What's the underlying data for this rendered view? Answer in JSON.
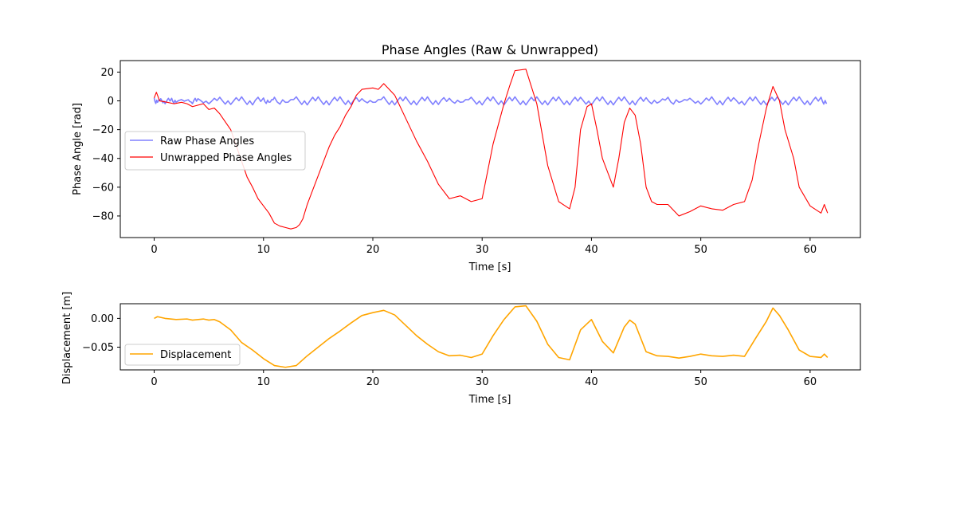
{
  "chart_data": [
    {
      "type": "line",
      "title": "Phase Angles (Raw & Unwrapped)",
      "xlabel": "Time [s]",
      "ylabel": "Phase Angle [rad]",
      "xlim": [
        -3.1,
        64.6
      ],
      "ylim": [
        -95,
        28
      ],
      "x_ticks": [
        0,
        10,
        20,
        30,
        40,
        50,
        60
      ],
      "x_tick_labels": [
        "0",
        "10",
        "20",
        "30",
        "40",
        "50",
        "60"
      ],
      "y_ticks": [
        20,
        0,
        -20,
        -40,
        -60,
        -80
      ],
      "y_tick_labels": [
        "20",
        "0",
        "−20",
        "−40",
        "−60",
        "−80"
      ],
      "grid": false,
      "legend_position": "center-left",
      "series": [
        {
          "name": "Raw Phase Angles",
          "color": "#8080ff",
          "x_range": [
            0,
            61.5
          ],
          "y_range": [
            -3.14,
            3.14
          ],
          "points": [
            [
              0,
              2
            ],
            [
              0.3,
              -1
            ],
            [
              0.6,
              1.5
            ],
            [
              1,
              -2
            ],
            [
              1.6,
              1.8
            ],
            [
              2,
              -1
            ],
            [
              3,
              0.5
            ],
            [
              3.5,
              -2
            ],
            [
              4,
              1.5
            ],
            [
              5,
              -2
            ],
            [
              6,
              2.5
            ],
            [
              7,
              -2.5
            ],
            [
              8,
              2.8
            ],
            [
              9,
              -2.8
            ],
            [
              10,
              2
            ],
            [
              10.5,
              -1
            ],
            [
              11,
              2.5
            ],
            [
              12,
              -1
            ],
            [
              13,
              2.8
            ],
            [
              14,
              -2.8
            ],
            [
              15,
              2.8
            ],
            [
              16,
              -2.8
            ],
            [
              17,
              2.8
            ],
            [
              18,
              -2.5
            ],
            [
              19,
              1.5
            ],
            [
              20,
              -1
            ],
            [
              21,
              2.8
            ],
            [
              22,
              -2.8
            ],
            [
              23,
              2.8
            ],
            [
              24,
              -2.8
            ],
            [
              25,
              2.8
            ],
            [
              26,
              -2.5
            ],
            [
              27,
              1.8
            ],
            [
              28,
              -1
            ],
            [
              29,
              2.5
            ],
            [
              30,
              -2.8
            ],
            [
              31,
              2.8
            ],
            [
              32,
              -2.8
            ],
            [
              33,
              2.8
            ],
            [
              34,
              -2.8
            ],
            [
              35,
              2.8
            ],
            [
              36,
              -2.8
            ],
            [
              37,
              2.8
            ],
            [
              38,
              -2.8
            ],
            [
              39,
              2.5
            ],
            [
              40,
              -2.8
            ],
            [
              41,
              2.8
            ],
            [
              42,
              -2.8
            ],
            [
              43,
              2.8
            ],
            [
              44,
              -2.8
            ],
            [
              45,
              2.2
            ],
            [
              46,
              -1.5
            ],
            [
              47,
              2.5
            ],
            [
              48,
              -1
            ],
            [
              49,
              1.8
            ],
            [
              50,
              -2.2
            ],
            [
              51,
              2.8
            ],
            [
              52,
              -2.8
            ],
            [
              53,
              2.2
            ],
            [
              54,
              -2.8
            ],
            [
              55,
              2.8
            ],
            [
              56,
              -2.8
            ],
            [
              57,
              2.8
            ],
            [
              58,
              -2.8
            ],
            [
              59,
              2.8
            ],
            [
              60,
              -2.8
            ],
            [
              61,
              2.5
            ],
            [
              61.5,
              -2
            ]
          ]
        },
        {
          "name": "Unwrapped Phase Angles",
          "color": "#ff0000",
          "points": [
            [
              0,
              2
            ],
            [
              0.2,
              6
            ],
            [
              0.5,
              0
            ],
            [
              1.2,
              -1
            ],
            [
              1.8,
              -2
            ],
            [
              2.5,
              -1
            ],
            [
              3,
              -2
            ],
            [
              3.5,
              -4
            ],
            [
              4.5,
              -2
            ],
            [
              5,
              -6
            ],
            [
              5.5,
              -5
            ],
            [
              6,
              -9
            ],
            [
              7,
              -20
            ],
            [
              8,
              -42
            ],
            [
              8.5,
              -53
            ],
            [
              9,
              -60
            ],
            [
              9.5,
              -68
            ],
            [
              10,
              -73
            ],
            [
              10.5,
              -78
            ],
            [
              11,
              -85
            ],
            [
              11.5,
              -87
            ],
            [
              12,
              -88
            ],
            [
              12.5,
              -89
            ],
            [
              13,
              -88
            ],
            [
              13.3,
              -86
            ],
            [
              13.6,
              -82
            ],
            [
              14,
              -72
            ],
            [
              14.5,
              -62
            ],
            [
              15,
              -52
            ],
            [
              15.5,
              -42
            ],
            [
              16,
              -32
            ],
            [
              16.5,
              -24
            ],
            [
              17,
              -18
            ],
            [
              17.5,
              -10
            ],
            [
              18,
              -4
            ],
            [
              18.5,
              4
            ],
            [
              19,
              8
            ],
            [
              20,
              9
            ],
            [
              20.5,
              8
            ],
            [
              21,
              12
            ],
            [
              22,
              4
            ],
            [
              23,
              -12
            ],
            [
              24,
              -28
            ],
            [
              25,
              -42
            ],
            [
              26,
              -58
            ],
            [
              27,
              -68
            ],
            [
              28,
              -66
            ],
            [
              29,
              -70
            ],
            [
              30,
              -68
            ],
            [
              31,
              -30
            ],
            [
              32,
              -2
            ],
            [
              32.5,
              10
            ],
            [
              33,
              21
            ],
            [
              34,
              22
            ],
            [
              35,
              -2
            ],
            [
              36,
              -45
            ],
            [
              37,
              -70
            ],
            [
              38,
              -75
            ],
            [
              38.5,
              -60
            ],
            [
              39,
              -20
            ],
            [
              39.6,
              -4
            ],
            [
              40,
              -2
            ],
            [
              40.5,
              -20
            ],
            [
              41,
              -40
            ],
            [
              42,
              -60
            ],
            [
              42.5,
              -40
            ],
            [
              43,
              -15
            ],
            [
              43.5,
              -5
            ],
            [
              44,
              -10
            ],
            [
              44.5,
              -30
            ],
            [
              45,
              -60
            ],
            [
              45.5,
              -70
            ],
            [
              46,
              -72
            ],
            [
              47,
              -72
            ],
            [
              48,
              -80
            ],
            [
              49,
              -77
            ],
            [
              50,
              -73
            ],
            [
              51,
              -75
            ],
            [
              52,
              -76
            ],
            [
              53,
              -72
            ],
            [
              54,
              -70
            ],
            [
              54.7,
              -55
            ],
            [
              55.3,
              -30
            ],
            [
              56,
              -5
            ],
            [
              56.6,
              10
            ],
            [
              57.2,
              0
            ],
            [
              57.7,
              -20
            ],
            [
              58.5,
              -40
            ],
            [
              59,
              -60
            ],
            [
              60,
              -73
            ],
            [
              61,
              -78
            ],
            [
              61.3,
              -72
            ],
            [
              61.6,
              -78
            ]
          ]
        }
      ]
    },
    {
      "type": "line",
      "title": "",
      "xlabel": "Time [s]",
      "ylabel": "Displacement [m]",
      "xlim": [
        -3.1,
        64.6
      ],
      "ylim": [
        -0.0895,
        0.0255
      ],
      "x_ticks": [
        0,
        10,
        20,
        30,
        40,
        50,
        60
      ],
      "x_tick_labels": [
        "0",
        "10",
        "20",
        "30",
        "40",
        "50",
        "60"
      ],
      "y_ticks": [
        0.0,
        -0.05
      ],
      "y_tick_labels": [
        "0.00",
        "−0.05"
      ],
      "grid": false,
      "legend_position": "lower-left",
      "series": [
        {
          "name": "Displacement",
          "color": "#ffa500",
          "points": [
            [
              0,
              0.0
            ],
            [
              0.3,
              0.003
            ],
            [
              1,
              0.0
            ],
            [
              2,
              -0.002
            ],
            [
              3,
              -0.001
            ],
            [
              3.5,
              -0.003
            ],
            [
              4.5,
              -0.001
            ],
            [
              5,
              -0.003
            ],
            [
              5.5,
              -0.002
            ],
            [
              6,
              -0.006
            ],
            [
              7,
              -0.02
            ],
            [
              8,
              -0.042
            ],
            [
              9,
              -0.055
            ],
            [
              10,
              -0.07
            ],
            [
              11,
              -0.082
            ],
            [
              12,
              -0.085
            ],
            [
              13,
              -0.082
            ],
            [
              14,
              -0.065
            ],
            [
              15,
              -0.05
            ],
            [
              16,
              -0.035
            ],
            [
              17,
              -0.022
            ],
            [
              18,
              -0.008
            ],
            [
              19,
              0.005
            ],
            [
              20,
              0.01
            ],
            [
              21,
              0.014
            ],
            [
              22,
              0.006
            ],
            [
              23,
              -0.012
            ],
            [
              24,
              -0.03
            ],
            [
              25,
              -0.045
            ],
            [
              26,
              -0.058
            ],
            [
              27,
              -0.065
            ],
            [
              28,
              -0.064
            ],
            [
              29,
              -0.068
            ],
            [
              30,
              -0.062
            ],
            [
              31,
              -0.03
            ],
            [
              32,
              -0.002
            ],
            [
              33,
              0.02
            ],
            [
              34,
              0.022
            ],
            [
              35,
              -0.005
            ],
            [
              36,
              -0.045
            ],
            [
              37,
              -0.068
            ],
            [
              38,
              -0.072
            ],
            [
              39,
              -0.02
            ],
            [
              40,
              -0.002
            ],
            [
              41,
              -0.04
            ],
            [
              42,
              -0.06
            ],
            [
              43,
              -0.015
            ],
            [
              43.5,
              -0.003
            ],
            [
              44,
              -0.01
            ],
            [
              45,
              -0.058
            ],
            [
              46,
              -0.065
            ],
            [
              47,
              -0.066
            ],
            [
              48,
              -0.069
            ],
            [
              49,
              -0.066
            ],
            [
              50,
              -0.062
            ],
            [
              51,
              -0.065
            ],
            [
              52,
              -0.066
            ],
            [
              53,
              -0.064
            ],
            [
              54,
              -0.066
            ],
            [
              55,
              -0.035
            ],
            [
              56,
              -0.005
            ],
            [
              56.6,
              0.018
            ],
            [
              57.2,
              0.005
            ],
            [
              58,
              -0.02
            ],
            [
              59,
              -0.055
            ],
            [
              60,
              -0.066
            ],
            [
              61,
              -0.068
            ],
            [
              61.3,
              -0.062
            ],
            [
              61.6,
              -0.068
            ]
          ]
        }
      ]
    }
  ]
}
